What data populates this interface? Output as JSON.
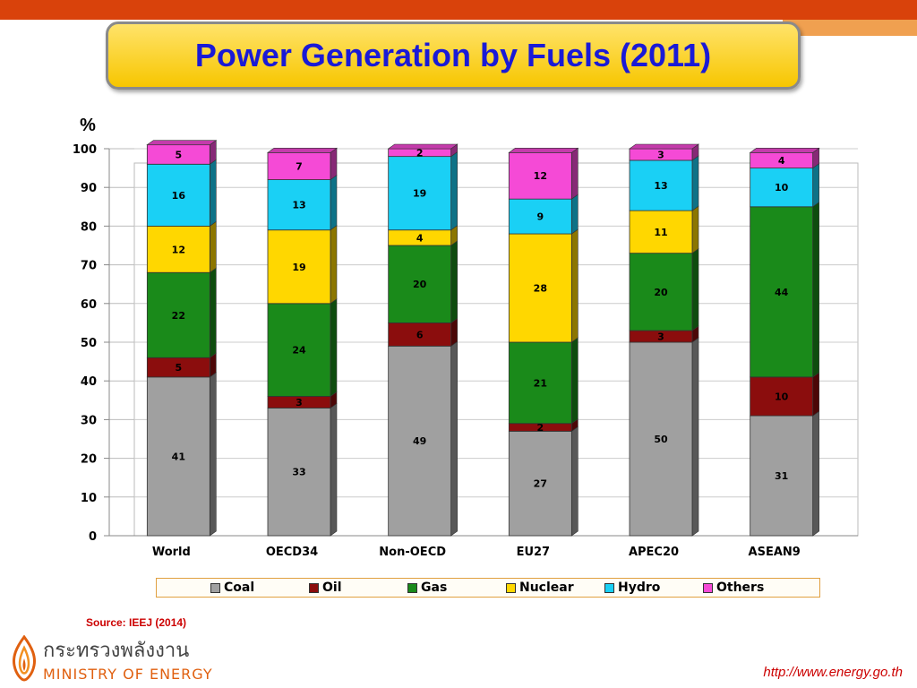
{
  "header": {
    "title": "Power Generation by Fuels (2011)"
  },
  "chart_data": {
    "type": "bar",
    "stacked": true,
    "y_unit_label": "%",
    "ylim": [
      0,
      100
    ],
    "yticks": [
      0,
      10,
      20,
      30,
      40,
      50,
      60,
      70,
      80,
      90,
      100
    ],
    "grid": true,
    "legend_position": "bottom",
    "categories": [
      "World",
      "OECD34",
      "Non-OECD",
      "EU27",
      "APEC20",
      "ASEAN9"
    ],
    "series": [
      {
        "name": "Coal",
        "color": "#a0a0a0",
        "values": [
          41,
          33,
          49,
          27,
          50,
          31
        ],
        "labels": [
          "41",
          "33",
          "49",
          "27",
          "50",
          "31"
        ]
      },
      {
        "name": "Oil",
        "color": "#8b0d0d",
        "values": [
          5,
          3,
          6,
          2,
          3,
          10
        ],
        "labels": [
          "5",
          "3",
          "6",
          "2",
          "3",
          "10"
        ]
      },
      {
        "name": "Gas",
        "color": "#1a8a1a",
        "values": [
          22,
          24,
          20,
          21,
          20,
          44
        ],
        "labels": [
          "22",
          "24",
          "20",
          "21",
          "20",
          "44"
        ]
      },
      {
        "name": "Nuclear",
        "color": "#ffd700",
        "values": [
          12,
          19,
          4,
          28,
          11,
          0
        ],
        "labels": [
          "12",
          "19",
          "4",
          "28",
          "11",
          ""
        ]
      },
      {
        "name": "Hydro",
        "color": "#1ad0f5",
        "values": [
          16,
          13,
          19,
          9,
          13,
          10
        ],
        "labels": [
          "16",
          "13",
          "19",
          "9",
          "13",
          "10"
        ]
      },
      {
        "name": "Others",
        "color": "#f54ad6",
        "values": [
          5,
          7,
          2,
          12,
          3,
          4
        ],
        "labels": [
          "5",
          "7",
          "2",
          "12",
          "3",
          "4"
        ]
      }
    ]
  },
  "footer": {
    "source": "Source:  IEEJ (2014)",
    "logo_thai": "กระทรวงพลังงาน",
    "logo_en": "MINISTRY OF ENERGY",
    "url": "http://www.energy.go.th"
  }
}
